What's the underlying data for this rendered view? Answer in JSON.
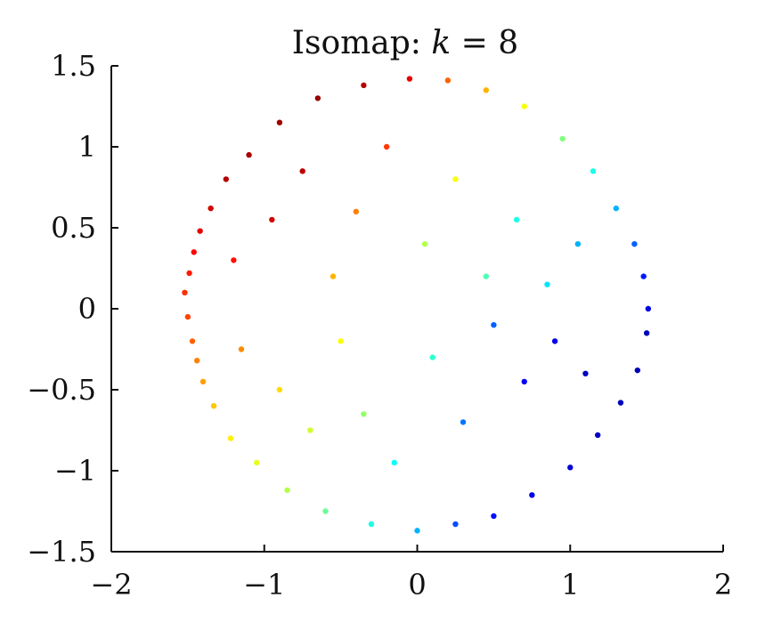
{
  "chart_data": {
    "type": "scatter",
    "title": {
      "prefix": "Isomap: ",
      "variable": "k",
      "suffix": " = 8"
    },
    "xlabel": "",
    "ylabel": "",
    "xlim": [
      -2,
      2
    ],
    "ylim": [
      -1.5,
      1.5
    ],
    "x_ticks": [
      -2,
      -1,
      0,
      1,
      2
    ],
    "x_tick_labels": [
      "−2",
      "−1",
      "0",
      "1",
      "2"
    ],
    "y_ticks": [
      -1.5,
      -1,
      -0.5,
      0,
      0.5,
      1,
      1.5
    ],
    "y_tick_labels": [
      "−1.5",
      "−1",
      "−0.5",
      "0",
      "0.5",
      "1",
      "1.5"
    ],
    "grid": false,
    "legend": "none",
    "colormap": "jet",
    "colormap_stops": [
      "#00008f",
      "#0000ff",
      "#0080ff",
      "#00ffff",
      "#80ff80",
      "#ffff00",
      "#ff8000",
      "#ff0000",
      "#800000"
    ],
    "point_color": "jet colormap value per point",
    "points": [
      [
        -1.52,
        0.1,
        0.83
      ],
      [
        -1.5,
        -0.05,
        0.81
      ],
      [
        -1.49,
        0.22,
        0.85
      ],
      [
        -1.47,
        -0.2,
        0.78
      ],
      [
        -1.46,
        0.35,
        0.87
      ],
      [
        -1.44,
        -0.32,
        0.75
      ],
      [
        -1.42,
        0.48,
        0.9
      ],
      [
        -1.4,
        -0.45,
        0.72
      ],
      [
        -1.35,
        0.62,
        0.92
      ],
      [
        -1.33,
        -0.6,
        0.68
      ],
      [
        -1.25,
        0.8,
        0.95
      ],
      [
        -1.22,
        -0.8,
        0.64
      ],
      [
        -1.1,
        0.95,
        0.96
      ],
      [
        -1.05,
        -0.95,
        0.6
      ],
      [
        -0.9,
        1.15,
        0.97
      ],
      [
        -0.85,
        -1.12,
        0.55
      ],
      [
        -0.65,
        1.3,
        0.98
      ],
      [
        -0.6,
        -1.25,
        0.48
      ],
      [
        -0.35,
        1.38,
        0.95
      ],
      [
        -0.3,
        -1.33,
        0.4
      ],
      [
        -0.05,
        1.42,
        0.9
      ],
      [
        0.0,
        -1.37,
        0.3
      ],
      [
        0.2,
        1.41,
        0.78
      ],
      [
        0.25,
        -1.33,
        0.2
      ],
      [
        0.45,
        1.35,
        0.7
      ],
      [
        0.5,
        -1.28,
        0.14
      ],
      [
        0.7,
        1.25,
        0.62
      ],
      [
        0.75,
        -1.15,
        0.1
      ],
      [
        0.95,
        1.05,
        0.5
      ],
      [
        1.0,
        -0.98,
        0.08
      ],
      [
        1.15,
        0.85,
        0.4
      ],
      [
        1.18,
        -0.78,
        0.06
      ],
      [
        1.3,
        0.62,
        0.3
      ],
      [
        1.33,
        -0.58,
        0.05
      ],
      [
        1.42,
        0.4,
        0.22
      ],
      [
        1.44,
        -0.38,
        0.04
      ],
      [
        1.48,
        0.2,
        0.15
      ],
      [
        1.5,
        -0.15,
        0.05
      ],
      [
        1.51,
        0.0,
        0.1
      ],
      [
        -1.2,
        0.3,
        0.86
      ],
      [
        -1.15,
        -0.25,
        0.74
      ],
      [
        -0.95,
        0.55,
        0.92
      ],
      [
        -0.9,
        -0.5,
        0.66
      ],
      [
        -0.75,
        0.85,
        0.94
      ],
      [
        -0.7,
        -0.75,
        0.58
      ],
      [
        -0.55,
        0.2,
        0.7
      ],
      [
        -0.5,
        -0.2,
        0.62
      ],
      [
        -0.4,
        0.6,
        0.75
      ],
      [
        -0.35,
        -0.65,
        0.52
      ],
      [
        -0.2,
        1.0,
        0.82
      ],
      [
        -0.15,
        -0.95,
        0.38
      ],
      [
        0.05,
        0.4,
        0.55
      ],
      [
        0.1,
        -0.3,
        0.42
      ],
      [
        0.25,
        0.8,
        0.62
      ],
      [
        0.3,
        -0.7,
        0.24
      ],
      [
        0.45,
        0.2,
        0.45
      ],
      [
        0.5,
        -0.1,
        0.22
      ],
      [
        0.65,
        0.55,
        0.4
      ],
      [
        0.7,
        -0.45,
        0.12
      ],
      [
        0.85,
        0.15,
        0.35
      ],
      [
        0.9,
        -0.2,
        0.1
      ],
      [
        1.05,
        0.4,
        0.3
      ],
      [
        1.1,
        -0.4,
        0.06
      ]
    ]
  }
}
